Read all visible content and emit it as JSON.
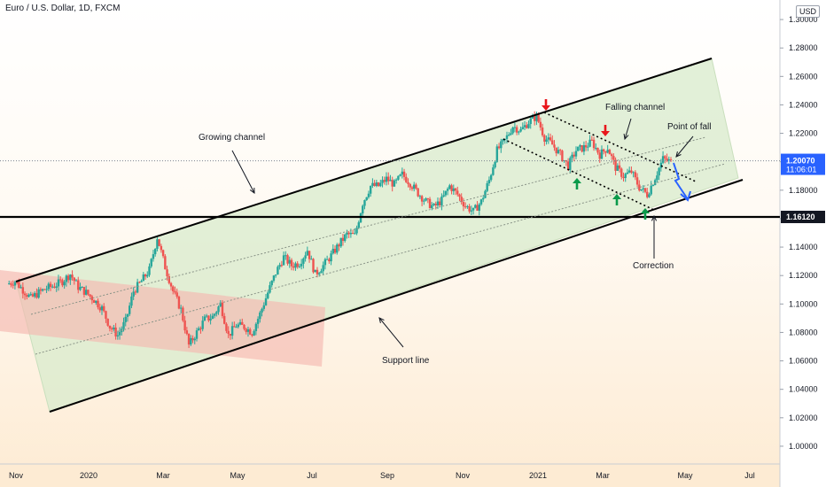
{
  "header": {
    "currency": "USD"
  },
  "chart_data": {
    "type": "candlestick",
    "title": "Euro / U.S. Dollar, 1D, FXCM",
    "ylim": [
      0.99,
      1.31
    ],
    "y_ticks": [
      "1.30000",
      "1.28000",
      "1.26000",
      "1.24000",
      "1.22000",
      "1.20000",
      "1.18000",
      "1.16000",
      "1.14000",
      "1.12000",
      "1.10000",
      "1.08000",
      "1.06000",
      "1.04000",
      "1.02000",
      "1.00000"
    ],
    "x_ticks": [
      "Nov",
      "2020",
      "Mar",
      "May",
      "Jul",
      "Sep",
      "Nov",
      "2021",
      "Mar",
      "May",
      "Jul"
    ],
    "current_price": {
      "label": "1.20070",
      "countdown": "11:06:01",
      "value": 1.2007
    },
    "support_level": {
      "label": "1.16120",
      "value": 1.1612
    },
    "close_series": [
      1.114,
      1.116,
      1.11,
      1.104,
      1.108,
      1.111,
      1.113,
      1.116,
      1.121,
      1.112,
      1.108,
      1.103,
      1.097,
      1.084,
      1.078,
      1.088,
      1.109,
      1.116,
      1.124,
      1.147,
      1.126,
      1.109,
      1.096,
      1.071,
      1.08,
      1.089,
      1.091,
      1.1,
      1.078,
      1.085,
      1.084,
      1.08,
      1.093,
      1.108,
      1.122,
      1.133,
      1.127,
      1.129,
      1.138,
      1.121,
      1.127,
      1.134,
      1.142,
      1.149,
      1.148,
      1.171,
      1.183,
      1.183,
      1.188,
      1.184,
      1.191,
      1.185,
      1.178,
      1.172,
      1.168,
      1.173,
      1.183,
      1.177,
      1.169,
      1.165,
      1.172,
      1.187,
      1.208,
      1.215,
      1.225,
      1.222,
      1.228,
      1.232,
      1.217,
      1.212,
      1.205,
      1.197,
      1.208,
      1.21,
      1.214,
      1.205,
      1.21,
      1.196,
      1.19,
      1.193,
      1.182,
      1.177,
      1.189,
      1.202,
      1.2
    ],
    "annotations": [
      "Growing channel",
      "Falling channel",
      "Point of fall",
      "Support line",
      "Correction"
    ]
  }
}
